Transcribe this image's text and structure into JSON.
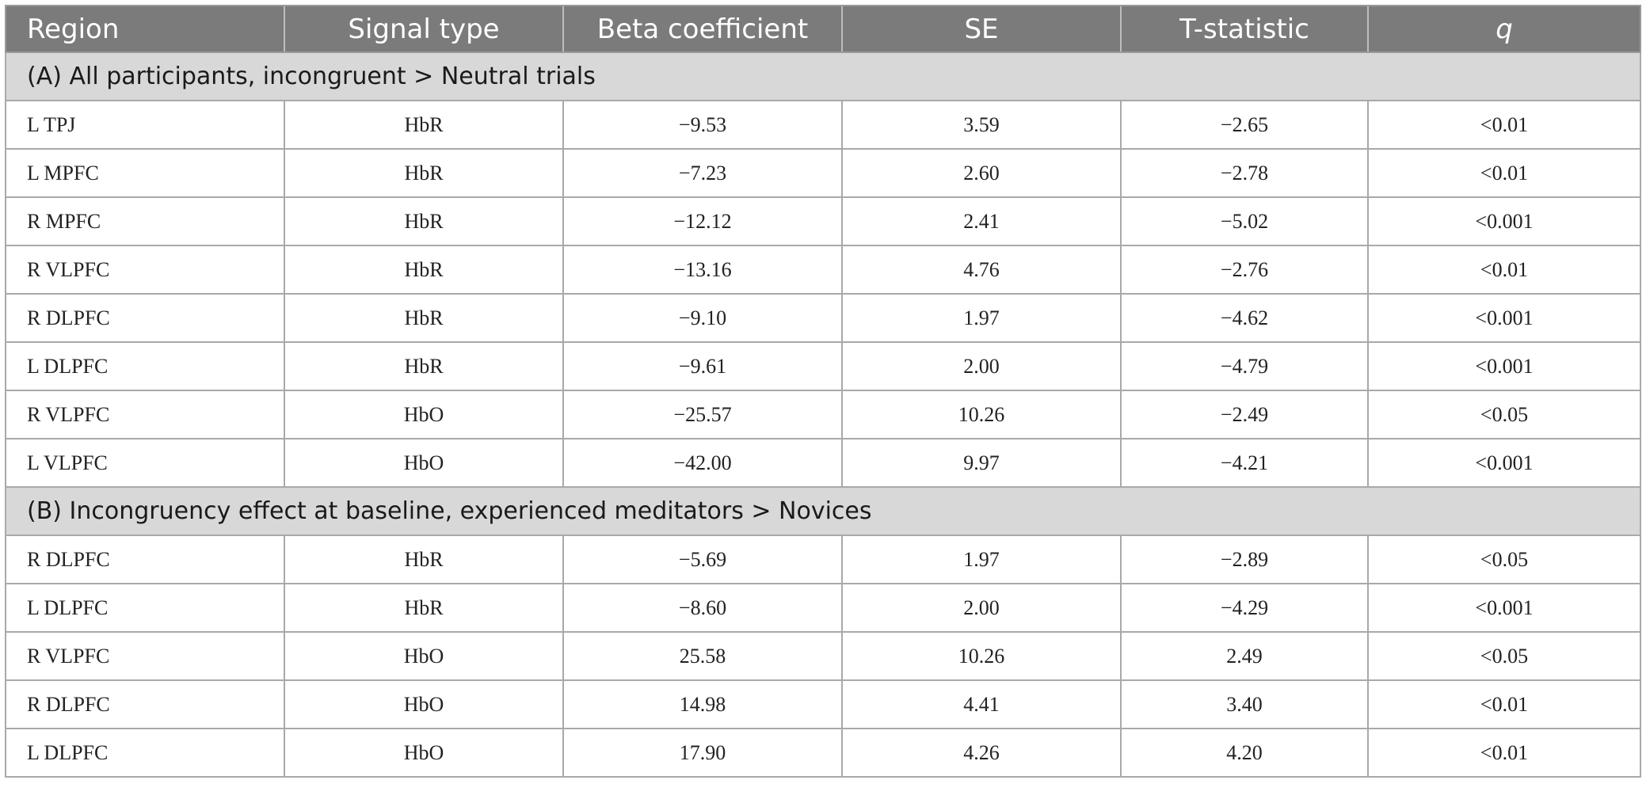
{
  "table": {
    "headers": [
      "Region",
      "Signal type",
      "Beta coefficient",
      "SE",
      "T-statistic",
      "q"
    ],
    "sections": [
      {
        "title": "(A) All participants, incongruent > Neutral trials",
        "rows": [
          [
            "L TPJ",
            "HbR",
            "−9.53",
            "3.59",
            "−2.65",
            "<0.01"
          ],
          [
            "L MPFC",
            "HbR",
            "−7.23",
            "2.60",
            "−2.78",
            "<0.01"
          ],
          [
            "R MPFC",
            "HbR",
            "−12.12",
            "2.41",
            "−5.02",
            "<0.001"
          ],
          [
            "R VLPFC",
            "HbR",
            "−13.16",
            "4.76",
            "−2.76",
            "<0.01"
          ],
          [
            "R DLPFC",
            "HbR",
            "−9.10",
            "1.97",
            "−4.62",
            "<0.001"
          ],
          [
            "L DLPFC",
            "HbR",
            "−9.61",
            "2.00",
            "−4.79",
            "<0.001"
          ],
          [
            "R VLPFC",
            "HbO",
            "−25.57",
            "10.26",
            "−2.49",
            "<0.05"
          ],
          [
            "L VLPFC",
            "HbO",
            "−42.00",
            "9.97",
            "−4.21",
            "<0.001"
          ]
        ]
      },
      {
        "title": "(B) Incongruency effect at baseline, experienced meditators > Novices",
        "rows": [
          [
            "R DLPFC",
            "HbR",
            "−5.69",
            "1.97",
            "−2.89",
            "<0.05"
          ],
          [
            "L DLPFC",
            "HbR",
            "−8.60",
            "2.00",
            "−4.29",
            "<0.001"
          ],
          [
            "R VLPFC",
            "HbO",
            "25.58",
            "10.26",
            "2.49",
            "<0.05"
          ],
          [
            "R DLPFC",
            "HbO",
            "14.98",
            "4.41",
            "3.40",
            "<0.01"
          ],
          [
            "L DLPFC",
            "HbO",
            "17.90",
            "4.26",
            "4.20",
            "<0.01"
          ]
        ]
      }
    ]
  }
}
